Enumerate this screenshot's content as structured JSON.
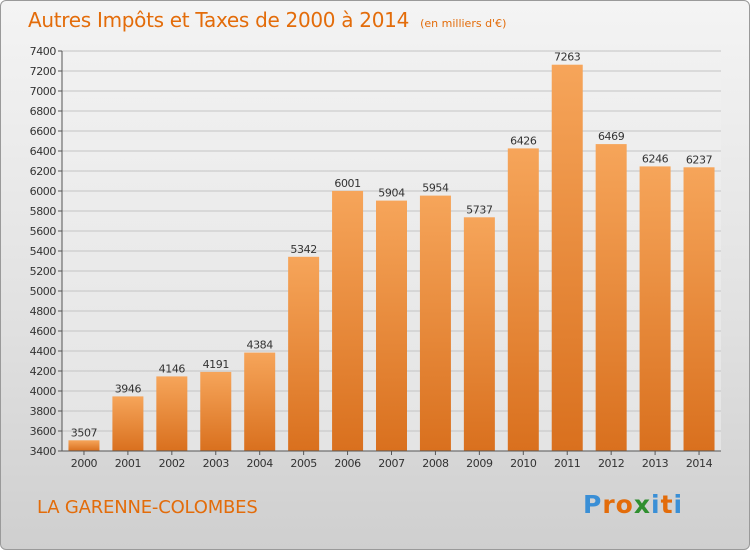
{
  "header": {
    "title": "Autres Impôts et Taxes de 2000 à 2014",
    "subtitle": "(en milliers d'€)"
  },
  "footer": {
    "commune": "LA GARENNE-COLOMBES",
    "brand": "Proxiti"
  },
  "colors": {
    "accent": "#e36c0a",
    "bar_top": "#f6a55a",
    "bar_bottom": "#d9701e",
    "brand_letters": [
      "#3a8fd6",
      "#e36c0a",
      "#e36c0a",
      "#2f8f2f",
      "#3a8fd6",
      "#e36c0a",
      "#3a8fd6"
    ]
  },
  "chart_data": {
    "type": "bar",
    "title": "Autres Impôts et Taxes de 2000 à 2014",
    "subtitle": "(en milliers d'€)",
    "categories": [
      "2000",
      "2001",
      "2002",
      "2003",
      "2004",
      "2005",
      "2006",
      "2007",
      "2008",
      "2009",
      "2010",
      "2011",
      "2012",
      "2013",
      "2014"
    ],
    "values": [
      3507,
      3946,
      4146,
      4191,
      4384,
      5342,
      6001,
      5904,
      5954,
      5737,
      6426,
      7263,
      6469,
      6246,
      6237
    ],
    "ylim": [
      3400,
      7400
    ],
    "yticks": [
      3400,
      3600,
      3800,
      4000,
      4200,
      4400,
      4600,
      4800,
      5000,
      5200,
      5400,
      5600,
      5800,
      6000,
      6200,
      6400,
      6600,
      6800,
      7000,
      7200,
      7400
    ],
    "grid": true,
    "legend": "none"
  }
}
